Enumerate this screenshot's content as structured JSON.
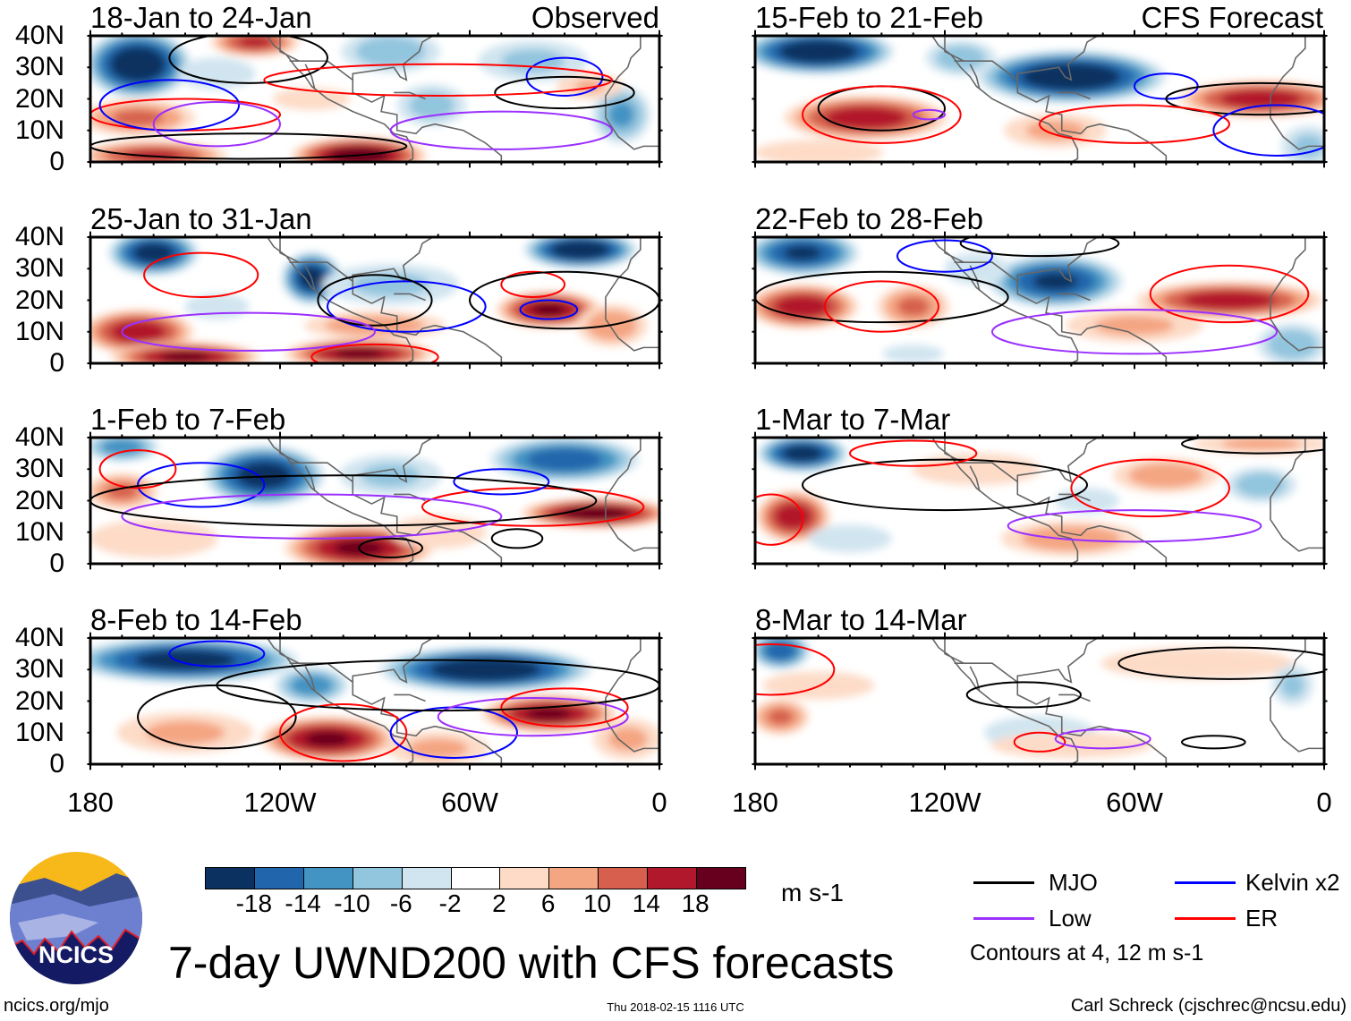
{
  "figure": {
    "title": "7-day UWND200 with CFS forecasts",
    "observed_label": "Observed",
    "forecast_label": "CFS Forecast",
    "website": "ncics.org/mjo",
    "timestamp": "Thu 2018-02-15 1116 UTC",
    "author": "Carl Schreck (cjschrec@ncsu.edu)",
    "logo_text": "NCICS"
  },
  "axes": {
    "y_ticks": [
      "40N",
      "30N",
      "20N",
      "10N",
      "0"
    ],
    "x_ticks": [
      "180",
      "120W",
      "60W",
      "0"
    ]
  },
  "colorbar": {
    "units": "m s-1",
    "labels": [
      "-18",
      "-14",
      "-10",
      "-6",
      "-2",
      "2",
      "6",
      "10",
      "14",
      "18"
    ],
    "colors": [
      "#0a3160",
      "#2166ac",
      "#4393c3",
      "#92c5de",
      "#d1e5f0",
      "#ffffff",
      "#fddbc7",
      "#f4a582",
      "#d6604d",
      "#b2182b",
      "#67001f"
    ]
  },
  "legend": {
    "items": [
      {
        "label": "MJO",
        "color": "#000000"
      },
      {
        "label": "Kelvin x2",
        "color": "#0000ff"
      },
      {
        "label": "Low",
        "color": "#9b30ff"
      },
      {
        "label": "ER",
        "color": "#ff0000"
      }
    ],
    "contour_note": "Contours at 4, 12 m s-1"
  },
  "chart_data": {
    "type": "heatmap",
    "variable": "200-hPa zonal wind anomaly (m s-1)",
    "lon_range": [
      -180,
      0
    ],
    "lat_range": [
      0,
      40
    ],
    "blob_format": "[lon, lat, peak_value, lon_halfwidth_deg, lat_halfwidth_deg]",
    "contour_format": "[wave, lon, lat, lon_halfwidth_deg, lat_halfwidth_deg]",
    "panels": [
      {
        "title": "18-Jan to 24-Jan",
        "type": "observed",
        "blobs": [
          [
            -165,
            31,
            -24,
            14,
            9
          ],
          [
            -128,
            38,
            16,
            12,
            4
          ],
          [
            -165,
            14,
            12,
            16,
            5
          ],
          [
            -160,
            2,
            16,
            20,
            4
          ],
          [
            -95,
            2,
            22,
            18,
            5
          ],
          [
            -85,
            35,
            -10,
            14,
            6
          ],
          [
            -72,
            18,
            -9,
            10,
            6
          ],
          [
            -40,
            32,
            -8,
            16,
            6
          ],
          [
            -12,
            15,
            -12,
            8,
            8
          ],
          [
            -22,
            24,
            7,
            10,
            4
          ],
          [
            -140,
            28,
            -6,
            12,
            5
          ],
          [
            -110,
            20,
            4,
            14,
            4
          ]
        ],
        "contours": [
          [
            "MJO",
            -130,
            33,
            25,
            8
          ],
          [
            "ER",
            -150,
            15,
            30,
            5
          ],
          [
            "Kelvin x2",
            -155,
            18,
            22,
            8
          ],
          [
            "Low",
            -140,
            12,
            20,
            7
          ],
          [
            "MJO",
            -130,
            5,
            50,
            4
          ],
          [
            "Kelvin x2",
            -30,
            27,
            12,
            6
          ],
          [
            "MJO",
            -30,
            22,
            22,
            5
          ],
          [
            "ER",
            -70,
            26,
            55,
            5
          ],
          [
            "Low",
            -50,
            10,
            35,
            6
          ]
        ]
      },
      {
        "title": "25-Jan to 31-Jan",
        "type": "observed",
        "blobs": [
          [
            -160,
            35,
            -22,
            12,
            6
          ],
          [
            -110,
            27,
            -22,
            8,
            7
          ],
          [
            -25,
            36,
            -24,
            15,
            5
          ],
          [
            -85,
            25,
            -8,
            20,
            6
          ],
          [
            -165,
            10,
            18,
            15,
            6
          ],
          [
            -150,
            2,
            20,
            20,
            4
          ],
          [
            -95,
            3,
            20,
            20,
            4
          ],
          [
            -35,
            17,
            20,
            14,
            5
          ],
          [
            -15,
            12,
            10,
            10,
            6
          ],
          [
            -140,
            18,
            -6,
            10,
            4
          ],
          [
            -90,
            12,
            10,
            20,
            4
          ]
        ],
        "contours": [
          [
            "ER",
            -145,
            28,
            18,
            7
          ],
          [
            "Kelvin x2",
            -80,
            18,
            25,
            8
          ],
          [
            "MJO",
            -90,
            20,
            18,
            8
          ],
          [
            "ER",
            -40,
            25,
            10,
            4
          ],
          [
            "Kelvin x2",
            -35,
            17,
            9,
            3
          ],
          [
            "Low",
            -130,
            10,
            40,
            6
          ],
          [
            "ER",
            -90,
            2,
            20,
            4
          ],
          [
            "MJO",
            -30,
            20,
            30,
            9
          ]
        ]
      },
      {
        "title": "1-Feb to 7-Feb",
        "type": "observed",
        "blobs": [
          [
            -170,
            37,
            -14,
            10,
            4
          ],
          [
            -125,
            28,
            -22,
            16,
            8
          ],
          [
            -30,
            33,
            -18,
            20,
            6
          ],
          [
            -170,
            23,
            12,
            10,
            5
          ],
          [
            -95,
            5,
            20,
            20,
            6
          ],
          [
            -20,
            16,
            22,
            20,
            4
          ],
          [
            -160,
            8,
            6,
            20,
            6
          ],
          [
            -85,
            28,
            -8,
            15,
            6
          ],
          [
            -70,
            10,
            6,
            15,
            5
          ]
        ],
        "contours": [
          [
            "Kelvin x2",
            -145,
            25,
            20,
            7
          ],
          [
            "ER",
            -165,
            30,
            12,
            6
          ],
          [
            "MJO",
            -85,
            5,
            10,
            3
          ],
          [
            "MJO",
            -45,
            8,
            8,
            3
          ],
          [
            "ER",
            -40,
            18,
            35,
            6
          ],
          [
            "Kelvin x2",
            -50,
            26,
            15,
            4
          ],
          [
            "Low",
            -110,
            15,
            60,
            7
          ],
          [
            "MJO",
            -100,
            20,
            80,
            8
          ]
        ]
      },
      {
        "title": "8-Feb to 14-Feb",
        "type": "observed",
        "blobs": [
          [
            -150,
            33,
            -22,
            30,
            6
          ],
          [
            -55,
            30,
            -24,
            28,
            6
          ],
          [
            -110,
            25,
            -14,
            10,
            5
          ],
          [
            -105,
            8,
            20,
            18,
            6
          ],
          [
            -35,
            16,
            20,
            18,
            5
          ],
          [
            -150,
            10,
            8,
            20,
            6
          ],
          [
            -70,
            5,
            8,
            15,
            5
          ],
          [
            -10,
            8,
            8,
            10,
            6
          ]
        ],
        "contours": [
          [
            "Kelvin x2",
            -140,
            35,
            15,
            4
          ],
          [
            "MJO",
            -140,
            15,
            25,
            10
          ],
          [
            "ER",
            -100,
            10,
            20,
            9
          ],
          [
            "Kelvin x2",
            -65,
            10,
            20,
            8
          ],
          [
            "Low",
            -40,
            15,
            30,
            6
          ],
          [
            "ER",
            -30,
            18,
            20,
            6
          ],
          [
            "MJO",
            -70,
            25,
            70,
            8
          ]
        ]
      },
      {
        "title": "15-Feb to 21-Feb",
        "type": "forecast",
        "blobs": [
          [
            -160,
            35,
            -24,
            20,
            6
          ],
          [
            -80,
            27,
            -24,
            25,
            7
          ],
          [
            -145,
            14,
            18,
            22,
            6
          ],
          [
            -20,
            20,
            18,
            22,
            5
          ],
          [
            -85,
            10,
            8,
            15,
            5
          ],
          [
            -115,
            33,
            -10,
            10,
            5
          ],
          [
            -5,
            5,
            -8,
            8,
            6
          ],
          [
            -160,
            3,
            6,
            20,
            4
          ]
        ],
        "contours": [
          [
            "MJO",
            -140,
            17,
            20,
            7
          ],
          [
            "ER",
            -140,
            15,
            25,
            9
          ],
          [
            "Low",
            -125,
            15,
            5,
            1.5
          ],
          [
            "Kelvin x2",
            -50,
            24,
            10,
            4
          ],
          [
            "MJO",
            -20,
            20,
            30,
            5
          ],
          [
            "ER",
            -60,
            12,
            30,
            6
          ],
          [
            "Kelvin x2",
            -15,
            10,
            20,
            8
          ]
        ]
      },
      {
        "title": "22-Feb to 28-Feb",
        "type": "forecast",
        "blobs": [
          [
            -165,
            35,
            -20,
            15,
            6
          ],
          [
            -85,
            26,
            -20,
            18,
            7
          ],
          [
            -165,
            18,
            18,
            15,
            6
          ],
          [
            -130,
            18,
            12,
            10,
            6
          ],
          [
            -30,
            20,
            18,
            25,
            5
          ],
          [
            -60,
            12,
            8,
            20,
            5
          ],
          [
            -10,
            6,
            -10,
            10,
            6
          ],
          [
            -130,
            3,
            -5,
            10,
            3
          ],
          [
            -110,
            30,
            -6,
            10,
            5
          ]
        ],
        "contours": [
          [
            "MJO",
            -140,
            21,
            40,
            8
          ],
          [
            "ER",
            -140,
            18,
            18,
            8
          ],
          [
            "Kelvin x2",
            -120,
            34,
            15,
            5
          ],
          [
            "ER",
            -30,
            22,
            25,
            9
          ],
          [
            "Low",
            -60,
            10,
            45,
            7
          ],
          [
            "MJO",
            -90,
            38,
            25,
            4
          ]
        ]
      },
      {
        "title": "1-Mar to 7-Mar",
        "type": "forecast",
        "blobs": [
          [
            -165,
            35,
            -22,
            12,
            5
          ],
          [
            -168,
            15,
            18,
            10,
            7
          ],
          [
            -80,
            8,
            10,
            20,
            5
          ],
          [
            -50,
            28,
            10,
            15,
            5
          ],
          [
            -20,
            25,
            -10,
            10,
            5
          ],
          [
            -20,
            38,
            8,
            20,
            3
          ],
          [
            -110,
            30,
            6,
            20,
            5
          ],
          [
            -150,
            8,
            -4,
            15,
            5
          ],
          [
            -75,
            20,
            -6,
            10,
            4
          ]
        ],
        "contours": [
          [
            "MJO",
            -120,
            25,
            45,
            8
          ],
          [
            "ER",
            -130,
            35,
            20,
            4
          ],
          [
            "ER",
            -55,
            24,
            25,
            9
          ],
          [
            "Low",
            -60,
            12,
            40,
            5
          ],
          [
            "ER",
            -175,
            14,
            10,
            8
          ],
          [
            "MJO",
            -20,
            38,
            25,
            3
          ]
        ]
      },
      {
        "title": "8-Mar to 14-Mar",
        "type": "forecast",
        "blobs": [
          [
            -172,
            36,
            -18,
            8,
            5
          ],
          [
            -172,
            15,
            12,
            8,
            5
          ],
          [
            -90,
            10,
            -4,
            20,
            6
          ],
          [
            -40,
            32,
            6,
            30,
            5
          ],
          [
            -10,
            25,
            -8,
            6,
            6
          ],
          [
            -80,
            6,
            6,
            25,
            4
          ],
          [
            -160,
            25,
            4,
            20,
            5
          ]
        ],
        "contours": [
          [
            "MJO",
            -95,
            22,
            18,
            4
          ],
          [
            "ER",
            -90,
            7,
            8,
            3
          ],
          [
            "Low",
            -70,
            8,
            15,
            3
          ],
          [
            "MJO",
            -35,
            7,
            10,
            2
          ],
          [
            "MJO",
            -30,
            32,
            35,
            5
          ],
          [
            "ER",
            -175,
            30,
            20,
            8
          ]
        ]
      }
    ]
  }
}
